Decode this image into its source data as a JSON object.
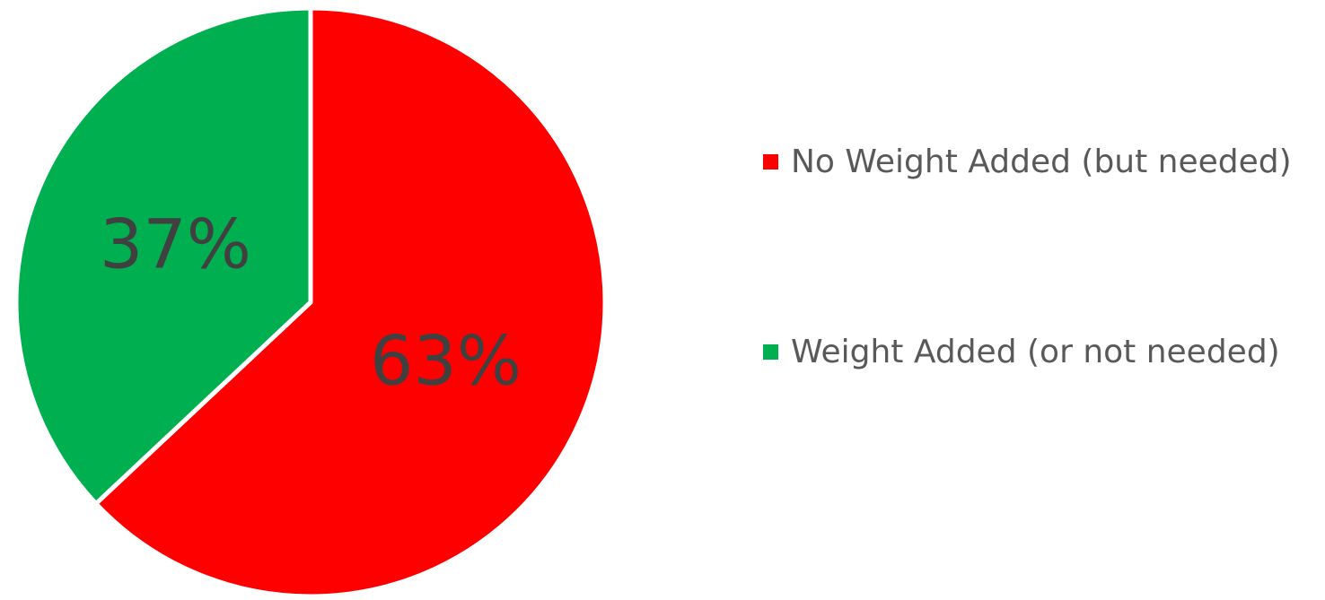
{
  "chart_data": {
    "type": "pie",
    "slices": [
      {
        "label": "No Weight Added (but needed)",
        "value": 63,
        "display": "63%",
        "color": "#ff0000"
      },
      {
        "label": "Weight Added (or not needed)",
        "value": 37,
        "display": "37%",
        "color": "#00b050"
      }
    ],
    "legend_position": "right",
    "start_angle": "12 o'clock",
    "direction": "clockwise"
  }
}
